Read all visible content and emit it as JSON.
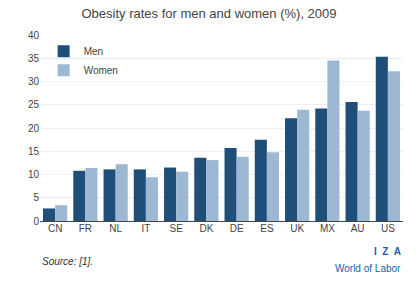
{
  "chart_data": {
    "type": "bar",
    "title": "Obesity rates for men and women (%), 2009",
    "categories": [
      "CN",
      "FR",
      "NL",
      "IT",
      "SE",
      "DK",
      "DE",
      "ES",
      "UK",
      "MX",
      "AU",
      "US"
    ],
    "series": [
      {
        "name": "Men",
        "color": "#1f4e79",
        "values": [
          2.7,
          10.8,
          11.1,
          11.1,
          11.5,
          13.6,
          15.7,
          17.5,
          22.1,
          24.2,
          25.6,
          35.3
        ]
      },
      {
        "name": "Women",
        "color": "#9db8d2",
        "values": [
          3.4,
          11.4,
          12.2,
          9.4,
          10.6,
          13.1,
          13.8,
          14.8,
          23.9,
          34.5,
          23.7,
          32.2
        ]
      }
    ],
    "ylim": [
      0,
      40
    ],
    "yticks": [
      0,
      5,
      10,
      15,
      20,
      25,
      30,
      35,
      40
    ],
    "grid": true,
    "legend": "upper left",
    "annotations": [
      "Source: [1].",
      "I  Z  A",
      "World of Labor"
    ]
  }
}
